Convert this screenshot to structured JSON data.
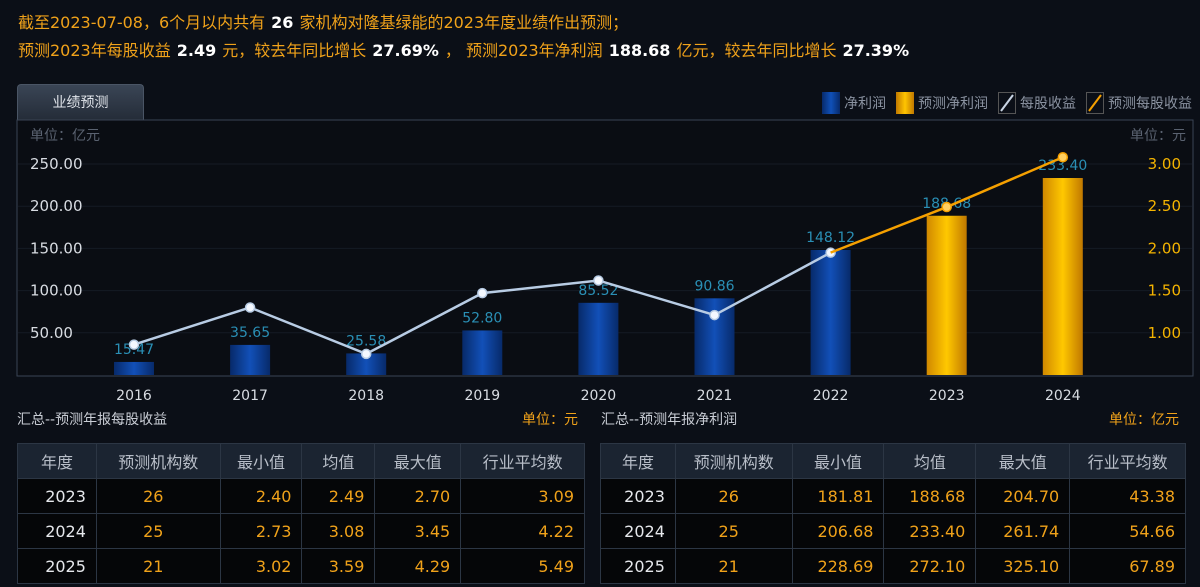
{
  "headline": {
    "line1": [
      "截至2023-07-08，6个月以内共有",
      "26",
      "家机构对隆基绿能的2023年度业绩作出预测；"
    ],
    "line2": [
      "预测2023年每股收益",
      "2.49",
      "元，较去年同比增长",
      "27.69%",
      "，  预测2023年净利润",
      "188.68",
      "亿元，较去年同比增长",
      "27.39%"
    ]
  },
  "tab": "业绩预测",
  "legend": [
    "净利润",
    "预测净利润",
    "每股收益",
    "预测每股收益"
  ],
  "colors": {
    "actual_bar": "#0d3f95",
    "forecast_bar": "#f5b400",
    "eps_line": "#b8cce4",
    "forecast_eps_line": "#f5a000",
    "label": "#2a8fb5",
    "accent": "#f0a21a"
  },
  "chart_data": {
    "type": "bar+line",
    "categories": [
      "2016",
      "2017",
      "2018",
      "2019",
      "2020",
      "2021",
      "2022",
      "2023",
      "2024"
    ],
    "left_unit": "单位：亿元",
    "right_unit": "单位：元",
    "left_ticks": [
      "50.00",
      "100.00",
      "150.00",
      "200.00",
      "250.00"
    ],
    "right_ticks": [
      "1.00",
      "1.50",
      "2.00",
      "2.50",
      "3.00"
    ],
    "ylim_left": [
      0,
      250
    ],
    "ylim_right": [
      0.5,
      3.0
    ],
    "series": [
      {
        "name": "净利润",
        "type": "bar",
        "values": [
          15.47,
          35.65,
          25.58,
          52.8,
          85.52,
          90.86,
          148.12,
          null,
          null
        ]
      },
      {
        "name": "预测净利润",
        "type": "bar",
        "values": [
          null,
          null,
          null,
          null,
          null,
          null,
          null,
          188.68,
          233.4
        ]
      },
      {
        "name": "每股收益",
        "type": "line",
        "axis": "right",
        "values": [
          0.86,
          1.3,
          0.75,
          1.47,
          1.62,
          1.21,
          1.95,
          null,
          null
        ]
      },
      {
        "name": "预测每股收益",
        "type": "line",
        "axis": "right",
        "values": [
          null,
          null,
          null,
          null,
          null,
          null,
          1.95,
          2.49,
          3.08
        ]
      }
    ],
    "data_labels": [
      "15.47",
      "35.65",
      "25.58",
      "52.80",
      "85.52",
      "90.86",
      "148.12",
      "188.68",
      "233.40"
    ]
  },
  "eps_table": {
    "title": "汇总--预测年报每股收益",
    "unit": "单位：元",
    "headers": [
      "年度",
      "预测机构数",
      "最小值",
      "均值",
      "最大值",
      "行业平均数"
    ],
    "rows": [
      [
        "2023",
        "26",
        "2.40",
        "2.49",
        "2.70",
        "3.09"
      ],
      [
        "2024",
        "25",
        "2.73",
        "3.08",
        "3.45",
        "4.22"
      ],
      [
        "2025",
        "21",
        "3.02",
        "3.59",
        "4.29",
        "5.49"
      ]
    ]
  },
  "np_table": {
    "title": "汇总--预测年报净利润",
    "unit": "单位：亿元",
    "headers": [
      "年度",
      "预测机构数",
      "最小值",
      "均值",
      "最大值",
      "行业平均数"
    ],
    "rows": [
      [
        "2023",
        "26",
        "181.81",
        "188.68",
        "204.70",
        "43.38"
      ],
      [
        "2024",
        "25",
        "206.68",
        "233.40",
        "261.74",
        "54.66"
      ],
      [
        "2025",
        "21",
        "228.69",
        "272.10",
        "325.10",
        "67.89"
      ]
    ]
  }
}
